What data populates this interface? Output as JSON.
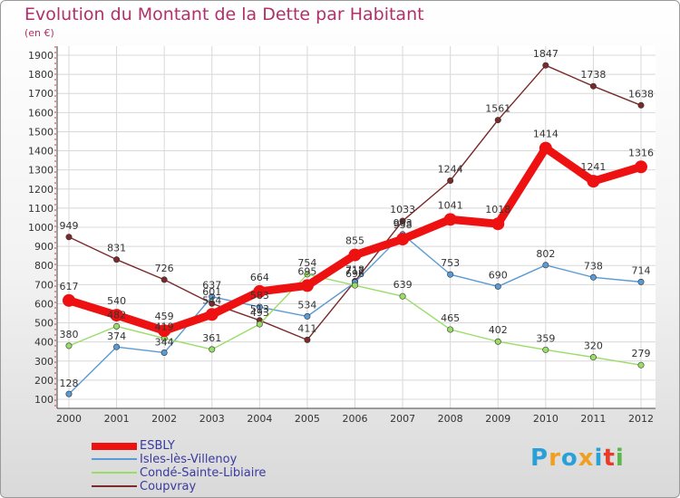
{
  "header": {
    "title": "Evolution du Montant de la Dette par Habitant",
    "unit": "(en €)"
  },
  "chart_data": {
    "type": "line",
    "title": "Evolution du Montant de la Dette par Habitant",
    "ylabel": "(en €)",
    "xlabel": "",
    "x": [
      "2000",
      "2001",
      "2002",
      "2003",
      "2004",
      "2005",
      "2006",
      "2007",
      "2008",
      "2009",
      "2010",
      "2011",
      "2012"
    ],
    "y_ticks": [
      100,
      200,
      300,
      400,
      500,
      600,
      700,
      800,
      900,
      1000,
      1100,
      1200,
      1300,
      1400,
      1500,
      1600,
      1700,
      1800,
      1900
    ],
    "ylim": [
      100,
      1900
    ],
    "grid": true,
    "legend_position": "bottom-left",
    "series": [
      {
        "name": "ESBLY",
        "color": "#ee1111",
        "values": [
          617,
          540,
          459,
          544,
          664,
          695,
          855,
          938,
          1041,
          1018,
          1414,
          1241,
          1316
        ],
        "labels": [
          "617",
          "540",
          "459",
          "544",
          "664",
          "695",
          "855",
          "938",
          "1041",
          "1018",
          "1414",
          "1241",
          "1316"
        ]
      },
      {
        "name": "Isles-lès-Villenoy",
        "color": "#5b9bd5",
        "values": [
          128,
          374,
          344,
          637,
          583,
          534,
          712,
          963,
          753,
          690,
          802,
          738,
          714
        ],
        "labels": [
          "128",
          "374",
          "344",
          "637",
          "583",
          "534",
          "712",
          "963",
          "753",
          "690",
          "802",
          "738",
          "714"
        ]
      },
      {
        "name": "Condé-Sainte-Libiaire",
        "color": "#99dd66",
        "values": [
          380,
          482,
          419,
          361,
          493,
          754,
          696,
          639,
          465,
          402,
          359,
          320,
          279
        ],
        "labels": [
          "380",
          "482",
          "419",
          "361",
          "493",
          "754",
          "696",
          "639",
          "465",
          "402",
          "359",
          "320",
          "279"
        ]
      },
      {
        "name": "Coupvray",
        "color": "#7a2a2a",
        "values": [
          949,
          831,
          726,
          601,
          513,
          411,
          718,
          1033,
          1244,
          1561,
          1847,
          1738,
          1638
        ],
        "labels": [
          "949",
          "831",
          "726",
          "601",
          "513",
          "411",
          "718",
          "1033",
          "1244",
          "1561",
          "1847",
          "1738",
          "1638"
        ]
      }
    ]
  },
  "legend": {
    "items": [
      "ESBLY",
      "Isles-lès-Villenoy",
      "Condé-Sainte-Libiaire",
      "Coupvray"
    ]
  },
  "logo": {
    "letters": [
      "P",
      "r",
      "o",
      "x",
      "i",
      "t",
      "i"
    ],
    "colors": [
      "#2aa0d8",
      "#f0a020",
      "#2aa0d8",
      "#f0a020",
      "#2aa0d8",
      "#e63a2a",
      "#58b848"
    ]
  }
}
